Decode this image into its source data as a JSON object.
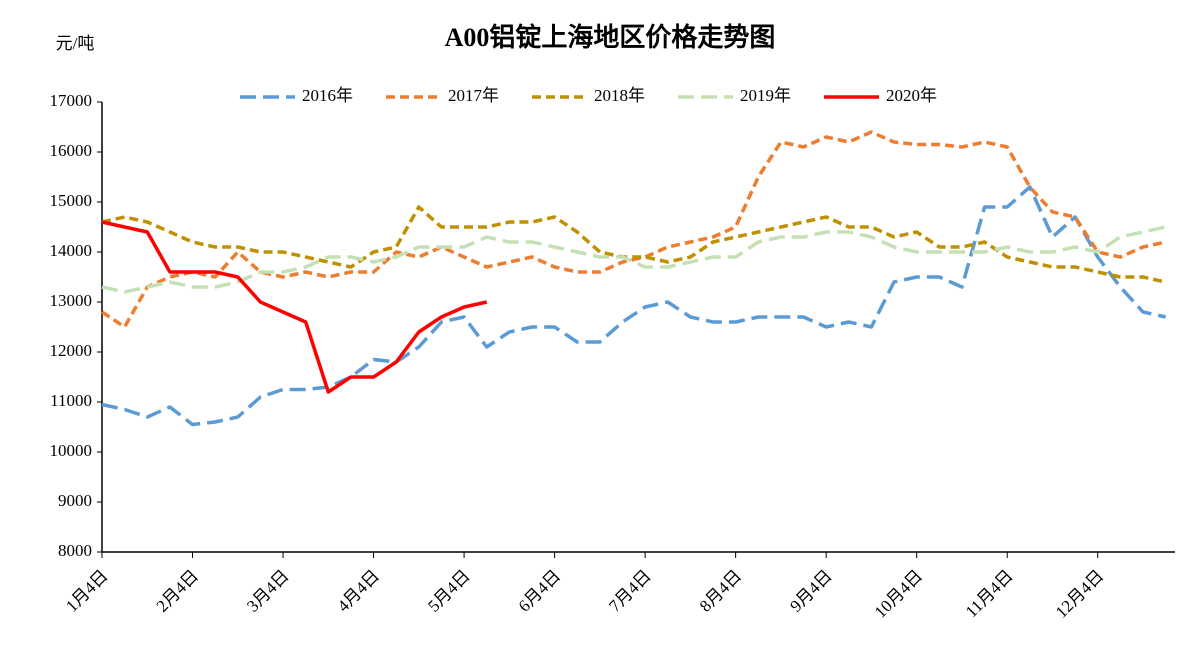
{
  "chart_data": {
    "type": "line",
    "title": "A00铝锭上海地区价格走势图",
    "y_label": "元/吨",
    "categories": [
      "1月4日",
      null,
      null,
      null,
      "2月4日",
      null,
      null,
      null,
      "3月4日",
      null,
      null,
      null,
      "4月4日",
      null,
      null,
      null,
      "5月4日",
      null,
      null,
      null,
      "6月4日",
      null,
      null,
      null,
      "7月4日",
      null,
      null,
      null,
      "8月4日",
      null,
      null,
      null,
      "9月4日",
      null,
      null,
      null,
      "10月4日",
      null,
      null,
      null,
      "11月4日",
      null,
      null,
      null,
      "12月4日",
      null,
      null,
      null
    ],
    "series": [
      {
        "name": "2016年",
        "color": "#5b9bd5",
        "style": "longdash",
        "values": [
          10950,
          10850,
          10700,
          10900,
          10550,
          10600,
          10700,
          11100,
          11250,
          11250,
          11300,
          11500,
          11850,
          11800,
          12100,
          12600,
          12700,
          12100,
          12400,
          12500,
          12500,
          12200,
          12200,
          12600,
          12900,
          13000,
          12700,
          12600,
          12600,
          12700,
          12700,
          12700,
          12500,
          12600,
          12500,
          13400,
          13500,
          13500,
          13300,
          14900,
          14900,
          15300,
          14300,
          14700,
          13900,
          13300,
          12800,
          12700
        ]
      },
      {
        "name": "2017年",
        "color": "#ed7d31",
        "style": "dash",
        "values": [
          12800,
          12500,
          13300,
          13500,
          13600,
          13500,
          14000,
          13600,
          13500,
          13600,
          13500,
          13600,
          13600,
          14000,
          13900,
          14100,
          13900,
          13700,
          13800,
          13900,
          13700,
          13600,
          13600,
          13800,
          13900,
          14100,
          14200,
          14300,
          14500,
          15500,
          16200,
          16100,
          16300,
          16200,
          16400,
          16200,
          16150,
          16150,
          16100,
          16200,
          16100,
          15300,
          14800,
          14700,
          14000,
          13900,
          14100,
          14200
        ]
      },
      {
        "name": "2018年",
        "color": "#bf9000",
        "style": "dash",
        "values": [
          14600,
          14700,
          14600,
          14400,
          14200,
          14100,
          14100,
          14000,
          14000,
          13900,
          13800,
          13700,
          14000,
          14100,
          14900,
          14500,
          14500,
          14500,
          14600,
          14600,
          14700,
          14400,
          14000,
          13900,
          13900,
          13800,
          13900,
          14200,
          14300,
          14400,
          14500,
          14600,
          14700,
          14500,
          14500,
          14300,
          14400,
          14100,
          14100,
          14200,
          13900,
          13800,
          13700,
          13700,
          13600,
          13500,
          13500,
          13400
        ]
      },
      {
        "name": "2019年",
        "color": "#c5e0b4",
        "style": "longdash",
        "values": [
          13300,
          13200,
          13300,
          13400,
          13300,
          13300,
          13400,
          13600,
          13600,
          13700,
          13900,
          13900,
          13800,
          13900,
          14100,
          14100,
          14100,
          14300,
          14200,
          14200,
          14100,
          14000,
          13900,
          13900,
          13700,
          13700,
          13800,
          13900,
          13900,
          14200,
          14300,
          14300,
          14400,
          14400,
          14300,
          14100,
          14000,
          14000,
          14000,
          14000,
          14100,
          14000,
          14000,
          14100,
          14000,
          14300,
          14400,
          14500
        ]
      },
      {
        "name": "2020年",
        "color": "#ff0000",
        "style": "solid",
        "values": [
          14600,
          14500,
          14400,
          13600,
          13600,
          13600,
          13500,
          13000,
          12800,
          12600,
          11200,
          11500,
          11500,
          11800,
          12400,
          12700,
          12900,
          13000,
          null,
          null,
          null,
          null,
          null,
          null,
          null,
          null,
          null,
          null,
          null,
          null,
          null,
          null,
          null,
          null,
          null,
          null,
          null,
          null,
          null,
          null,
          null,
          null,
          null,
          null,
          null,
          null,
          null,
          null
        ]
      }
    ],
    "ylim": [
      8000,
      17000
    ],
    "yticks": [
      8000,
      9000,
      10000,
      11000,
      12000,
      13000,
      14000,
      15000,
      16000,
      17000
    ],
    "grid": false,
    "legend": "top"
  }
}
